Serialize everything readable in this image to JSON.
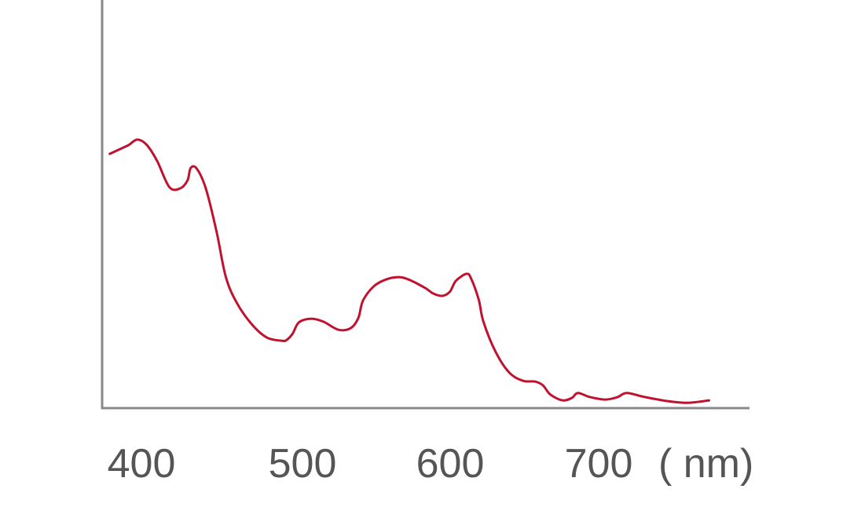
{
  "chart_data": {
    "type": "line",
    "title": "",
    "xlabel": "( nm)",
    "ylabel": "",
    "xlim": [
      374,
      798
    ],
    "ylim": [
      0,
      100
    ],
    "xticks": [
      400,
      500,
      600,
      700
    ],
    "grid": false,
    "colors": {
      "line": "#c0122e",
      "axis": "#888888",
      "text": "#555555"
    },
    "series": [
      {
        "x": [
          379,
          390,
          392,
          397,
          403,
          410,
          418,
          425,
          430,
          432,
          436,
          442,
          449,
          455,
          462,
          472,
          482,
          492,
          495,
          499,
          503,
          511,
          519,
          529,
          537,
          542,
          545,
          552,
          560,
          568,
          575,
          586,
          591,
          597,
          602,
          606,
          613,
          616,
          621,
          624,
          632,
          641,
          650,
          658,
          663,
          668,
          676,
          682,
          686,
          694,
          704,
          712,
          718,
          730,
          745,
          758,
          772
        ],
        "y": [
          62.3,
          64.2,
          64.6,
          65.8,
          64.6,
          60.6,
          54.2,
          53.8,
          55.8,
          58.8,
          58.7,
          53.8,
          43.3,
          32.3,
          26.0,
          20.6,
          17.3,
          16.5,
          16.7,
          18.3,
          21.0,
          21.9,
          21.2,
          19.2,
          19.6,
          22.1,
          26.3,
          29.8,
          31.5,
          32.1,
          31.5,
          29.4,
          28.1,
          27.5,
          28.5,
          31.2,
          32.9,
          31.7,
          26.5,
          21.2,
          13.8,
          8.7,
          6.7,
          6.5,
          5.6,
          3.3,
          1.9,
          2.5,
          3.7,
          2.7,
          2.1,
          2.7,
          3.7,
          2.7,
          1.7,
          1.3,
          1.9
        ]
      }
    ]
  }
}
